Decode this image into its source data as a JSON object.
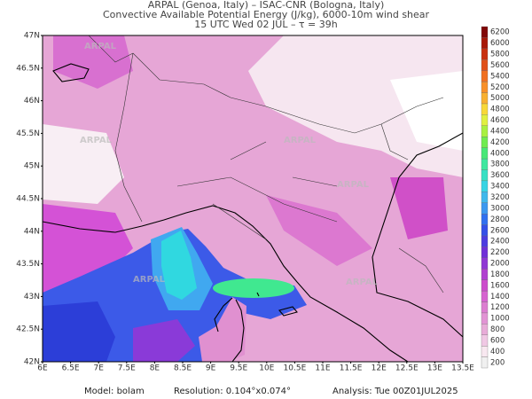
{
  "header": {
    "line1": "ARPAL (Genoa, Italy)  –  ISAC-CNR (Bologna, Italy)",
    "line2": "Convective Available Potential Energy (J/kg), 6000-10m wind shear",
    "line3": "15 UTC Wed 02 JUL  –  τ = 39h"
  },
  "watermark": "ARPAL",
  "lat_labels": [
    "47N",
    "46.5N",
    "46N",
    "45.5N",
    "45N",
    "44.5N",
    "44N",
    "43.5N",
    "43N",
    "42.5N",
    "42N"
  ],
  "lon_labels": [
    "6E",
    "6.5E",
    "7E",
    "7.5E",
    "8E",
    "8.5E",
    "9E",
    "9.5E",
    "10E",
    "10.5E",
    "11E",
    "11.5E",
    "12E",
    "12.5E",
    "13E",
    "13.5E"
  ],
  "colorbar": {
    "levels": [
      200,
      400,
      600,
      800,
      1000,
      1200,
      1400,
      1600,
      1800,
      2000,
      2200,
      2400,
      2600,
      2800,
      3000,
      3200,
      3400,
      3600,
      3800,
      4000,
      4200,
      4400,
      4600,
      4800,
      5000,
      5200,
      5400,
      5600,
      5800,
      6000,
      6200
    ],
    "colors": [
      "#f0f0f0",
      "#f8e8f0",
      "#f0c8e4",
      "#e8acd8",
      "#e294d4",
      "#dc7ed0",
      "#d664d0",
      "#cc4ccc",
      "#b040d0",
      "#9038d4",
      "#7030d8",
      "#4c3ce0",
      "#3450e8",
      "#3070f0",
      "#3c98f0",
      "#40b8ec",
      "#38d4e4",
      "#38e0c4",
      "#40e8a0",
      "#48e878",
      "#70ec50",
      "#a8f040",
      "#e0f040",
      "#f8d838",
      "#f8b030",
      "#f89028",
      "#f07020",
      "#e05018",
      "#c83010",
      "#a81808",
      "#800808"
    ]
  },
  "footer": {
    "model": "Model: bolam",
    "resolution": "Resolution: 0.104°x0.074°",
    "analysis": "Analysis: Tue 00Z01JUL2025"
  }
}
